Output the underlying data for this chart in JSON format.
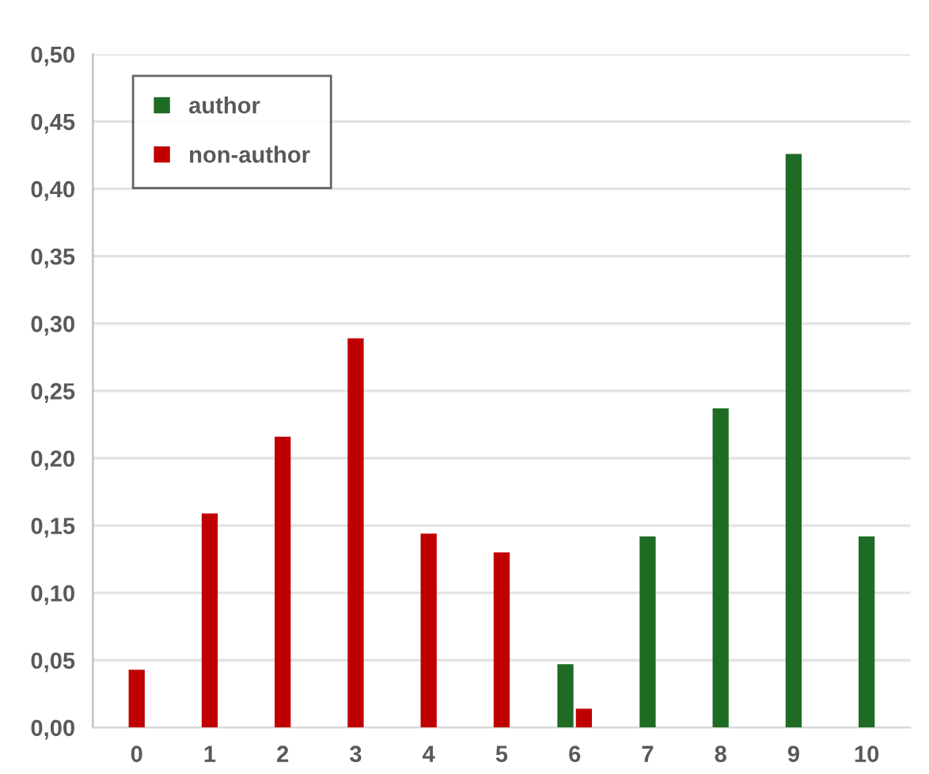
{
  "chart_data": {
    "type": "bar",
    "categories": [
      "0",
      "1",
      "2",
      "3",
      "4",
      "5",
      "6",
      "7",
      "8",
      "9",
      "10"
    ],
    "series": [
      {
        "name": "author",
        "color": "#1e6b24",
        "values": [
          null,
          null,
          null,
          null,
          null,
          null,
          0.047,
          0.142,
          0.237,
          0.426,
          0.142
        ]
      },
      {
        "name": "non-author",
        "color": "#c00000",
        "values": [
          0.043,
          0.159,
          0.216,
          0.289,
          0.144,
          0.13,
          0.014,
          null,
          null,
          null,
          null
        ]
      }
    ],
    "ylim": [
      0,
      0.5
    ],
    "yticks": [
      {
        "value": 0,
        "label": "0,00"
      },
      {
        "value": 0.05,
        "label": "0,05"
      },
      {
        "value": 0.1,
        "label": "0,10"
      },
      {
        "value": 0.15,
        "label": "0,15"
      },
      {
        "value": 0.2,
        "label": "0,20"
      },
      {
        "value": 0.25,
        "label": "0,25"
      },
      {
        "value": 0.3,
        "label": "0,30"
      },
      {
        "value": 0.35,
        "label": "0,35"
      },
      {
        "value": 0.4,
        "label": "0,40"
      },
      {
        "value": 0.45,
        "label": "0,45"
      },
      {
        "value": 0.5,
        "label": "0,50"
      }
    ],
    "grid": "y",
    "legend": "top left"
  }
}
